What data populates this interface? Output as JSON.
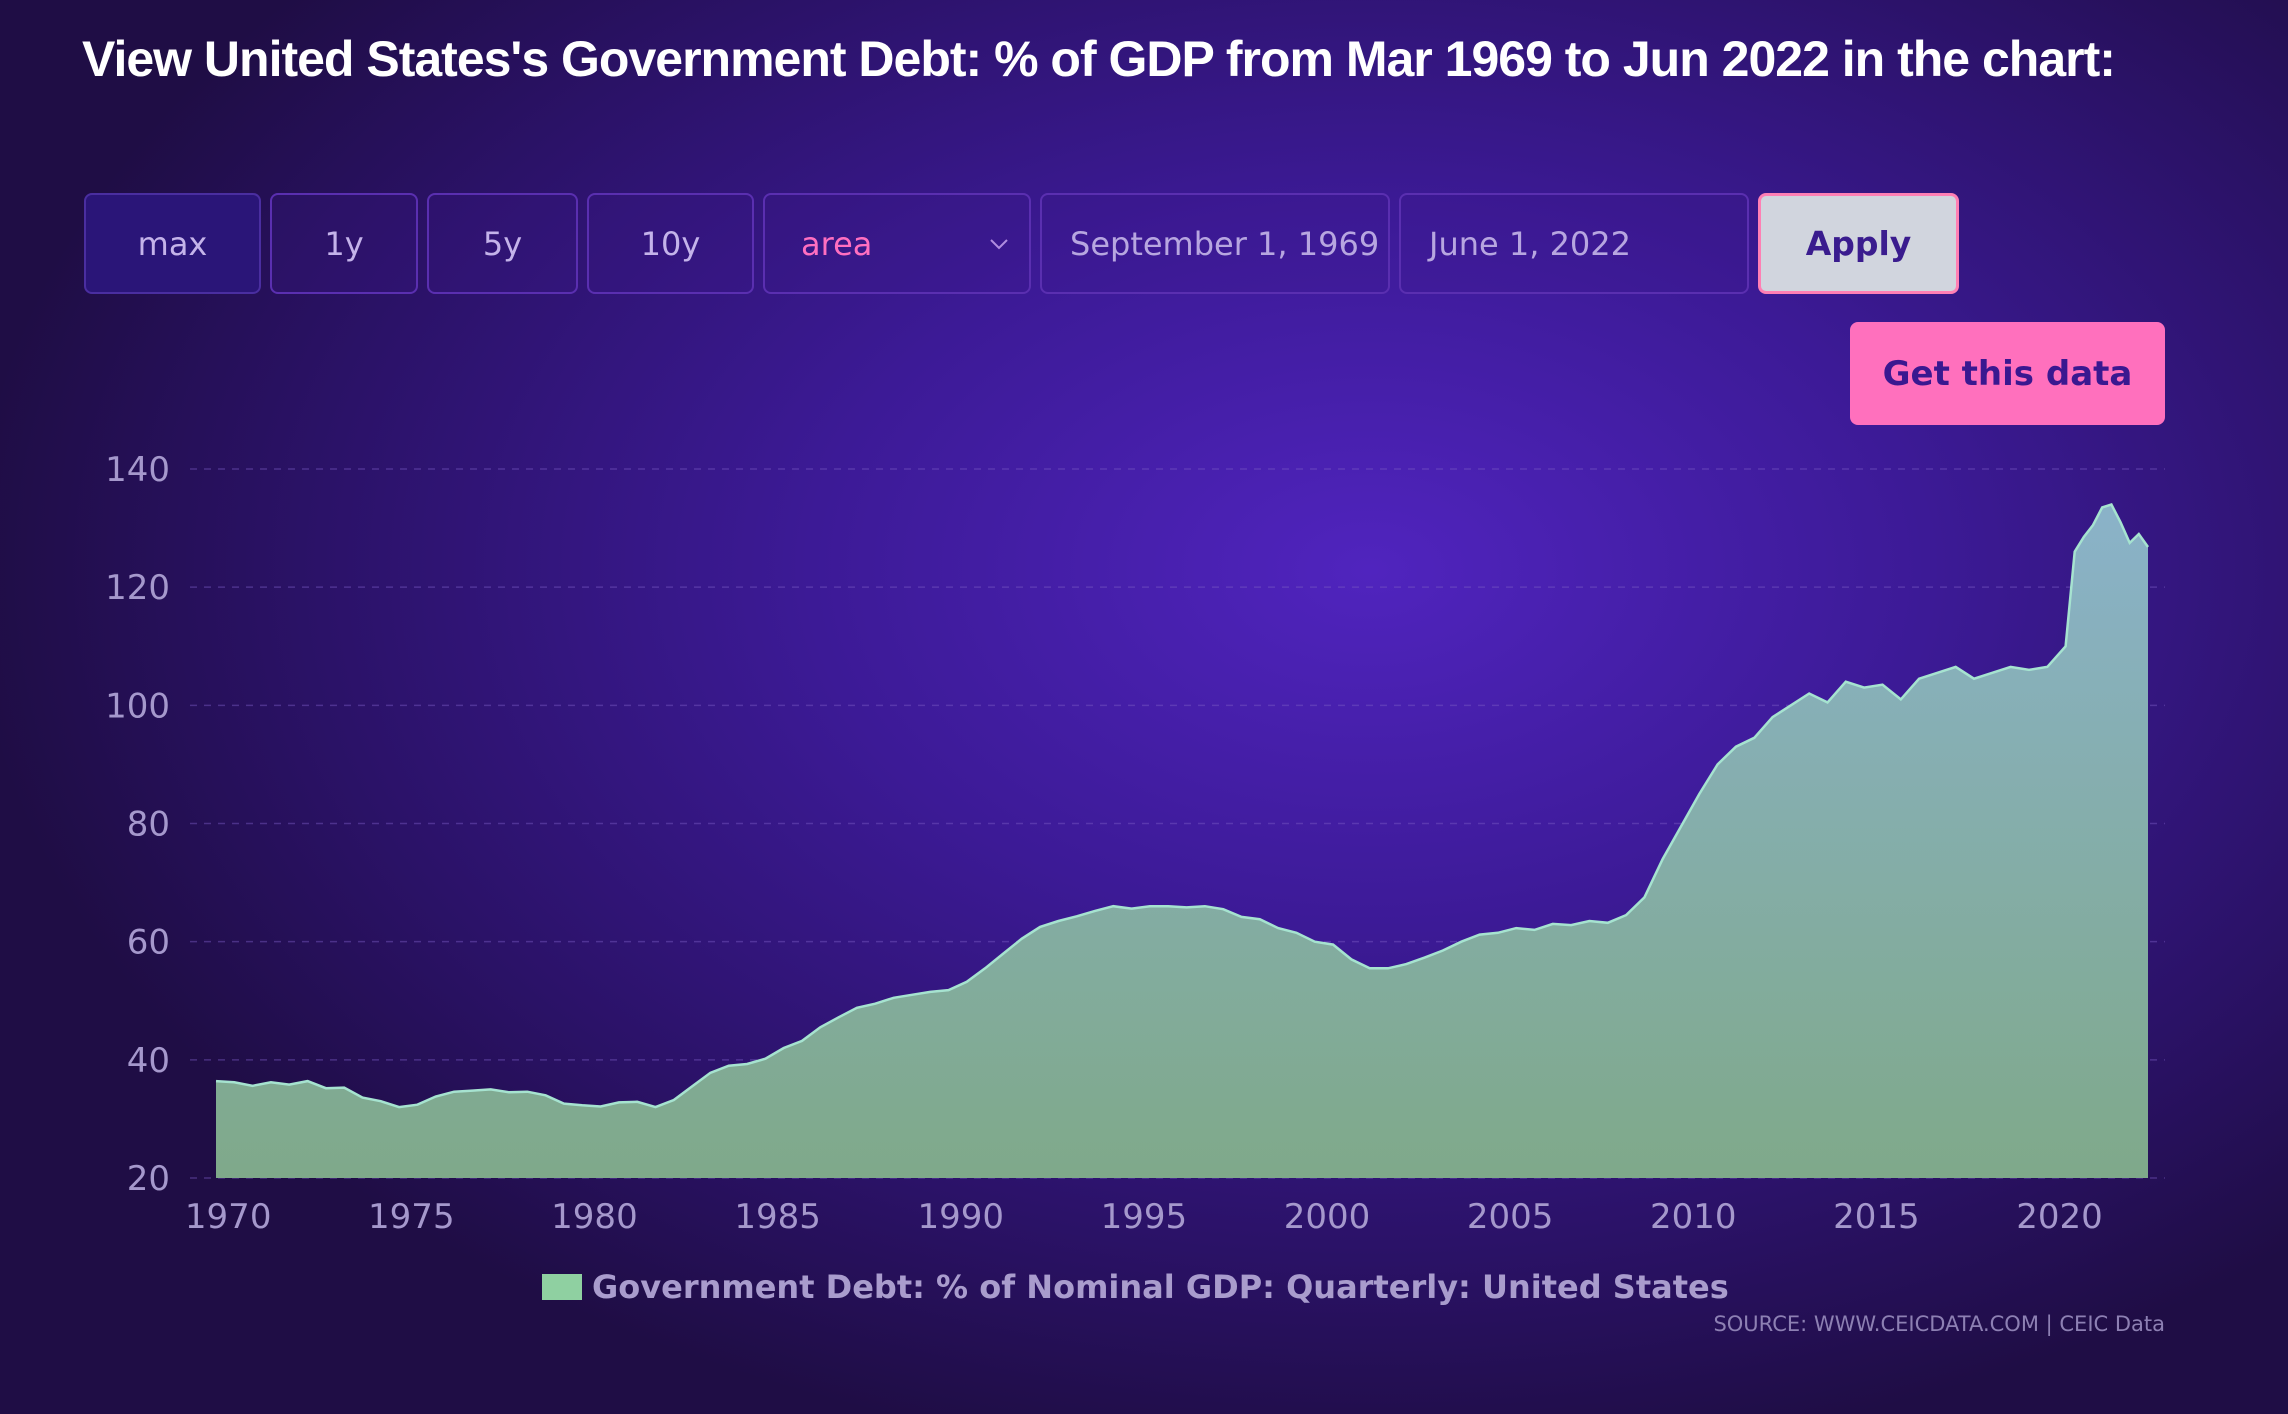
{
  "page": {
    "title": "View United States's Government Debt: % of GDP from Mar 1969 to Jun 2022 in the chart:",
    "source": "SOURCE: WWW.CEICDATA.COM | CEIC Data"
  },
  "controls": {
    "ranges": [
      "max",
      "1y",
      "5y",
      "10y"
    ],
    "active_range": "max",
    "chart_type": "area",
    "start_date": "September 1, 1969",
    "end_date": "June 1, 2022",
    "apply_label": "Apply",
    "get_data_label": "Get this data",
    "icons": {
      "chart_type_dropdown": "chevron-down-icon"
    }
  },
  "colors": {
    "accent_pink": "#ff70bd",
    "area_top": "#8ab2c9",
    "area_bottom": "#7fa98a",
    "line": "#a6e3d0",
    "legend_swatch": "#8fd0a1"
  },
  "chart_data": {
    "type": "area",
    "title": "",
    "xlabel": "",
    "ylabel": "",
    "ylim": [
      20,
      140
    ],
    "yticks": [
      20,
      40,
      60,
      80,
      100,
      120,
      140
    ],
    "xlim": [
      1969.667,
      2022.417
    ],
    "xticks": [
      "1970",
      "1975",
      "1980",
      "1985",
      "1990",
      "1995",
      "2000",
      "2005",
      "2010",
      "2015",
      "2020"
    ],
    "grid": true,
    "legend_position": "bottom-center",
    "series": [
      {
        "name": "Government Debt: % of Nominal GDP: Quarterly: United States",
        "points": [
          [
            "1969-09",
            36.4
          ],
          [
            "1970-03",
            36.2
          ],
          [
            "1970-09",
            35.6
          ],
          [
            "1971-03",
            36.2
          ],
          [
            "1971-09",
            35.8
          ],
          [
            "1972-03",
            36.4
          ],
          [
            "1972-09",
            35.2
          ],
          [
            "1973-03",
            35.3
          ],
          [
            "1973-09",
            33.6
          ],
          [
            "1974-03",
            33.0
          ],
          [
            "1974-09",
            32.0
          ],
          [
            "1975-03",
            32.4
          ],
          [
            "1975-09",
            33.8
          ],
          [
            "1976-03",
            34.6
          ],
          [
            "1976-09",
            34.8
          ],
          [
            "1977-03",
            35.0
          ],
          [
            "1977-09",
            34.5
          ],
          [
            "1978-03",
            34.6
          ],
          [
            "1978-09",
            34.0
          ],
          [
            "1979-03",
            32.6
          ],
          [
            "1979-09",
            32.3
          ],
          [
            "1980-03",
            32.1
          ],
          [
            "1980-09",
            32.8
          ],
          [
            "1981-03",
            32.9
          ],
          [
            "1981-09",
            32.0
          ],
          [
            "1982-03",
            33.2
          ],
          [
            "1982-09",
            35.5
          ],
          [
            "1983-03",
            37.8
          ],
          [
            "1983-09",
            39.0
          ],
          [
            "1984-03",
            39.3
          ],
          [
            "1984-09",
            40.2
          ],
          [
            "1985-03",
            42.0
          ],
          [
            "1985-09",
            43.2
          ],
          [
            "1986-03",
            45.5
          ],
          [
            "1986-09",
            47.2
          ],
          [
            "1987-03",
            48.8
          ],
          [
            "1987-09",
            49.5
          ],
          [
            "1988-03",
            50.5
          ],
          [
            "1988-09",
            51.0
          ],
          [
            "1989-03",
            51.5
          ],
          [
            "1989-09",
            51.8
          ],
          [
            "1990-03",
            53.2
          ],
          [
            "1990-09",
            55.5
          ],
          [
            "1991-03",
            58.0
          ],
          [
            "1991-09",
            60.5
          ],
          [
            "1992-03",
            62.5
          ],
          [
            "1992-09",
            63.5
          ],
          [
            "1993-03",
            64.3
          ],
          [
            "1993-09",
            65.2
          ],
          [
            "1994-03",
            66.0
          ],
          [
            "1994-09",
            65.6
          ],
          [
            "1995-03",
            66.0
          ],
          [
            "1995-09",
            66.0
          ],
          [
            "1996-03",
            65.8
          ],
          [
            "1996-09",
            66.0
          ],
          [
            "1997-03",
            65.5
          ],
          [
            "1997-09",
            64.2
          ],
          [
            "1998-03",
            63.8
          ],
          [
            "1998-09",
            62.3
          ],
          [
            "1999-03",
            61.5
          ],
          [
            "1999-09",
            60.0
          ],
          [
            "2000-03",
            59.5
          ],
          [
            "2000-09",
            57.0
          ],
          [
            "2001-03",
            55.5
          ],
          [
            "2001-09",
            55.5
          ],
          [
            "2002-03",
            56.2
          ],
          [
            "2002-09",
            57.3
          ],
          [
            "2003-03",
            58.5
          ],
          [
            "2003-09",
            60.0
          ],
          [
            "2004-03",
            61.2
          ],
          [
            "2004-09",
            61.5
          ],
          [
            "2005-03",
            62.3
          ],
          [
            "2005-09",
            62.0
          ],
          [
            "2006-03",
            63.0
          ],
          [
            "2006-09",
            62.8
          ],
          [
            "2007-03",
            63.5
          ],
          [
            "2007-09",
            63.2
          ],
          [
            "2008-03",
            64.5
          ],
          [
            "2008-09",
            67.5
          ],
          [
            "2009-03",
            74.0
          ],
          [
            "2009-09",
            79.5
          ],
          [
            "2010-03",
            85.0
          ],
          [
            "2010-09",
            90.0
          ],
          [
            "2011-03",
            93.0
          ],
          [
            "2011-09",
            94.5
          ],
          [
            "2012-03",
            98.0
          ],
          [
            "2012-09",
            100.0
          ],
          [
            "2013-03",
            102.0
          ],
          [
            "2013-09",
            100.5
          ],
          [
            "2014-03",
            104.0
          ],
          [
            "2014-09",
            103.0
          ],
          [
            "2015-03",
            103.5
          ],
          [
            "2015-09",
            101.0
          ],
          [
            "2016-03",
            104.5
          ],
          [
            "2016-09",
            105.5
          ],
          [
            "2017-03",
            106.5
          ],
          [
            "2017-09",
            104.5
          ],
          [
            "2018-03",
            105.5
          ],
          [
            "2018-09",
            106.5
          ],
          [
            "2019-03",
            106.0
          ],
          [
            "2019-09",
            106.5
          ],
          [
            "2020-03",
            110.0
          ],
          [
            "2020-06",
            126.0
          ],
          [
            "2020-09",
            128.5
          ],
          [
            "2020-12",
            130.5
          ],
          [
            "2021-03",
            133.5
          ],
          [
            "2021-06",
            134.0
          ],
          [
            "2021-09",
            131.0
          ],
          [
            "2021-12",
            127.5
          ],
          [
            "2022-03",
            129.0
          ],
          [
            "2022-06",
            126.8
          ]
        ]
      }
    ]
  }
}
